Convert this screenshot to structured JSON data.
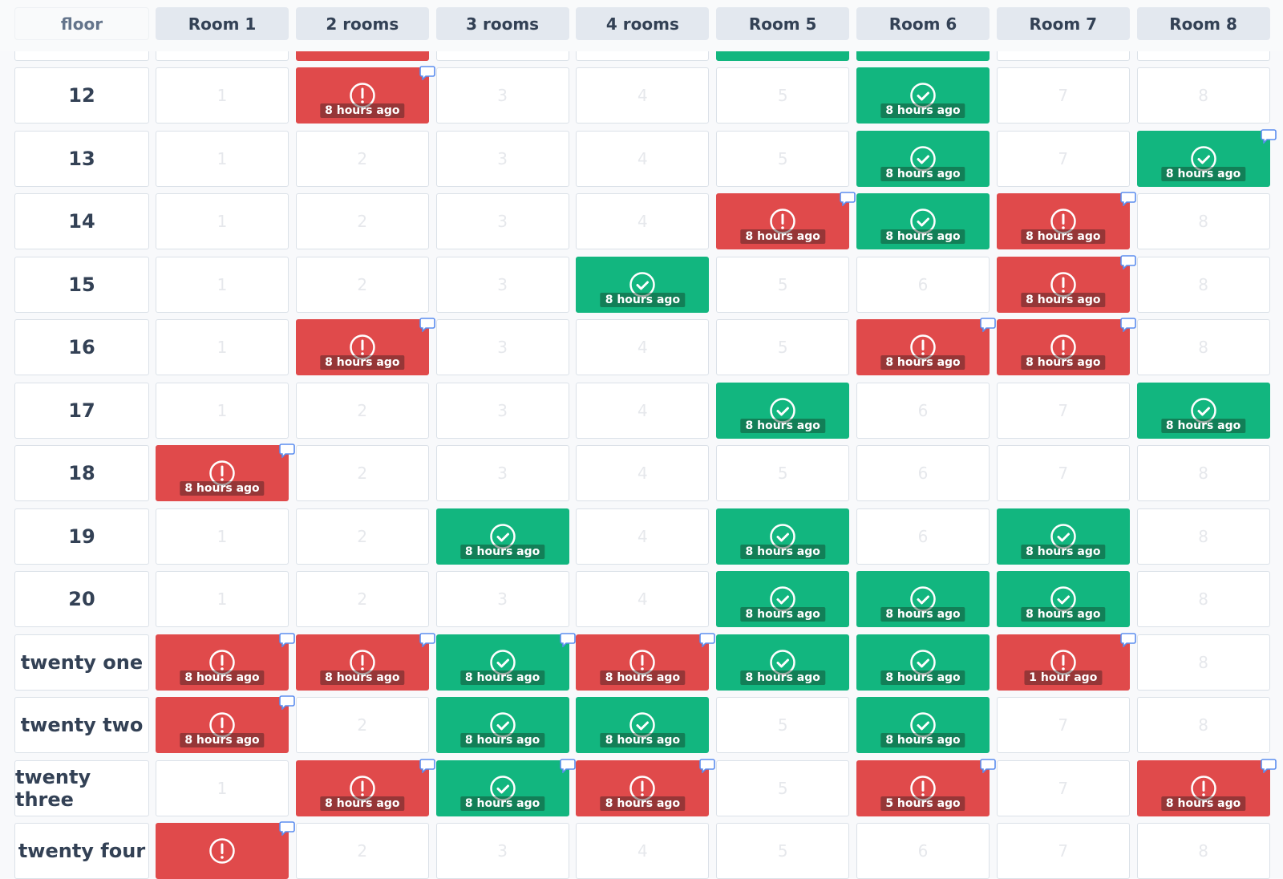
{
  "header": {
    "corner": "floor",
    "rooms": [
      "Room 1",
      "2 rooms",
      "3 rooms",
      "4 rooms",
      "Room 5",
      "Room 6",
      "Room 7",
      "Room 8"
    ]
  },
  "rows": [
    {
      "cells": [
        {},
        {
          "status": "alert"
        },
        {},
        {},
        {
          "status": "ok"
        },
        {
          "status": "ok"
        },
        {},
        {}
      ]
    },
    {
      "floor": "12",
      "cells": [
        {
          "label": "1"
        },
        {
          "status": "alert",
          "time": "8 hours ago",
          "comment": true
        },
        {
          "label": "3"
        },
        {
          "label": "4"
        },
        {
          "label": "5"
        },
        {
          "status": "ok",
          "time": "8 hours ago"
        },
        {
          "label": "7"
        },
        {
          "label": "8"
        }
      ]
    },
    {
      "floor": "13",
      "cells": [
        {
          "label": "1"
        },
        {
          "label": "2"
        },
        {
          "label": "3"
        },
        {
          "label": "4"
        },
        {
          "label": "5"
        },
        {
          "status": "ok",
          "time": "8 hours ago"
        },
        {
          "label": "7"
        },
        {
          "status": "ok",
          "time": "8 hours ago",
          "comment": true
        }
      ]
    },
    {
      "floor": "14",
      "cells": [
        {
          "label": "1"
        },
        {
          "label": "2"
        },
        {
          "label": "3"
        },
        {
          "label": "4"
        },
        {
          "status": "alert",
          "time": "8 hours ago",
          "comment": true
        },
        {
          "status": "ok",
          "time": "8 hours ago"
        },
        {
          "status": "alert",
          "time": "8 hours ago",
          "comment": true
        },
        {
          "label": "8"
        }
      ]
    },
    {
      "floor": "15",
      "cells": [
        {
          "label": "1"
        },
        {
          "label": "2"
        },
        {
          "label": "3"
        },
        {
          "status": "ok",
          "time": "8 hours ago"
        },
        {
          "label": "5"
        },
        {
          "label": "6"
        },
        {
          "status": "alert",
          "time": "8 hours ago",
          "comment": true
        },
        {
          "label": "8"
        }
      ]
    },
    {
      "floor": "16",
      "cells": [
        {
          "label": "1"
        },
        {
          "status": "alert",
          "time": "8 hours ago",
          "comment": true
        },
        {
          "label": "3"
        },
        {
          "label": "4"
        },
        {
          "label": "5"
        },
        {
          "status": "alert",
          "time": "8 hours ago",
          "comment": true
        },
        {
          "status": "alert",
          "time": "8 hours ago",
          "comment": true
        },
        {
          "label": "8"
        }
      ]
    },
    {
      "floor": "17",
      "cells": [
        {
          "label": "1"
        },
        {
          "label": "2"
        },
        {
          "label": "3"
        },
        {
          "label": "4"
        },
        {
          "status": "ok",
          "time": "8 hours ago"
        },
        {
          "label": "6"
        },
        {
          "label": "7"
        },
        {
          "status": "ok",
          "time": "8 hours ago"
        }
      ]
    },
    {
      "floor": "18",
      "cells": [
        {
          "status": "alert",
          "time": "8 hours ago",
          "comment": true
        },
        {
          "label": "2"
        },
        {
          "label": "3"
        },
        {
          "label": "4"
        },
        {
          "label": "5"
        },
        {
          "label": "6"
        },
        {
          "label": "7"
        },
        {
          "label": "8"
        }
      ]
    },
    {
      "floor": "19",
      "cells": [
        {
          "label": "1"
        },
        {
          "label": "2"
        },
        {
          "status": "ok",
          "time": "8 hours ago"
        },
        {
          "label": "4"
        },
        {
          "status": "ok",
          "time": "8 hours ago"
        },
        {
          "label": "6"
        },
        {
          "status": "ok",
          "time": "8 hours ago"
        },
        {
          "label": "8"
        }
      ]
    },
    {
      "floor": "20",
      "cells": [
        {
          "label": "1"
        },
        {
          "label": "2"
        },
        {
          "label": "3"
        },
        {
          "label": "4"
        },
        {
          "status": "ok",
          "time": "8 hours ago"
        },
        {
          "status": "ok",
          "time": "8 hours ago"
        },
        {
          "status": "ok",
          "time": "8 hours ago"
        },
        {
          "label": "8"
        }
      ]
    },
    {
      "floor": "twenty one",
      "cells": [
        {
          "status": "alert",
          "time": "8 hours ago",
          "comment": true
        },
        {
          "status": "alert",
          "time": "8 hours ago",
          "comment": true
        },
        {
          "status": "ok",
          "time": "8 hours ago",
          "comment": true
        },
        {
          "status": "alert",
          "time": "8 hours ago",
          "comment": true
        },
        {
          "status": "ok",
          "time": "8 hours ago"
        },
        {
          "status": "ok",
          "time": "8 hours ago"
        },
        {
          "status": "alert",
          "time": "1 hour ago",
          "comment": true
        },
        {
          "label": "8"
        }
      ]
    },
    {
      "floor": "twenty two",
      "cells": [
        {
          "status": "alert",
          "time": "8 hours ago",
          "comment": true
        },
        {
          "label": "2"
        },
        {
          "status": "ok",
          "time": "8 hours ago"
        },
        {
          "status": "ok",
          "time": "8 hours ago"
        },
        {
          "label": "5"
        },
        {
          "status": "ok",
          "time": "8 hours ago"
        },
        {
          "label": "7"
        },
        {
          "label": "8"
        }
      ]
    },
    {
      "floor": "twenty three",
      "cells": [
        {
          "label": "1"
        },
        {
          "status": "alert",
          "time": "8 hours ago",
          "comment": true
        },
        {
          "status": "ok",
          "time": "8 hours ago",
          "comment": true
        },
        {
          "status": "alert",
          "time": "8 hours ago",
          "comment": true
        },
        {
          "label": "5"
        },
        {
          "status": "alert",
          "time": "5 hours ago",
          "comment": true
        },
        {
          "label": "7"
        },
        {
          "status": "alert",
          "time": "8 hours ago",
          "comment": true
        }
      ]
    },
    {
      "floor": "twenty four",
      "cells": [
        {
          "status": "alert",
          "comment": true
        },
        {
          "label": "2"
        },
        {
          "label": "3"
        },
        {
          "label": "4"
        },
        {
          "label": "5"
        },
        {
          "label": "6"
        },
        {
          "label": "7"
        },
        {
          "label": "8"
        }
      ]
    }
  ]
}
